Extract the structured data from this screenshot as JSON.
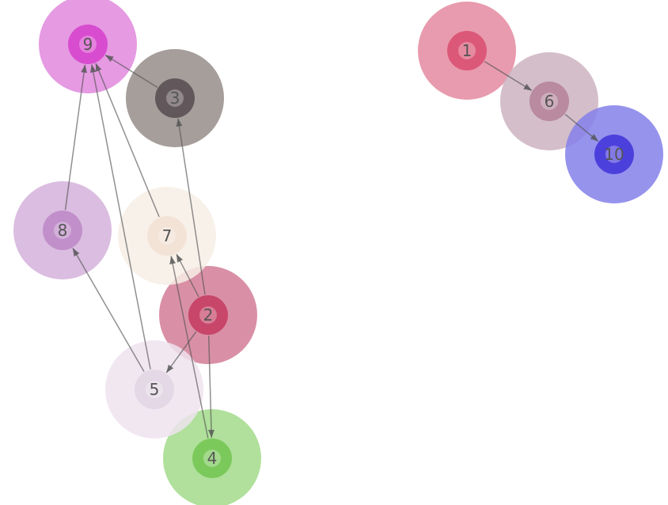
{
  "graph": {
    "directed": true,
    "nodes": [
      {
        "id": "1",
        "label": "1",
        "outer": "#e48aa0",
        "inner": "#dc5878"
      },
      {
        "id": "2",
        "label": "2",
        "outer": "#d27c96",
        "inner": "#c74669"
      },
      {
        "id": "3",
        "label": "3",
        "outer": "#958d8a",
        "inner": "#62575a"
      },
      {
        "id": "4",
        "label": "4",
        "outer": "#a2da8a",
        "inner": "#7cc95b"
      },
      {
        "id": "5",
        "label": "5",
        "outer": "#efe3ee",
        "inner": "#e4d8e6"
      },
      {
        "id": "6",
        "label": "6",
        "outer": "#cdb3bf",
        "inner": "#b98aa0"
      },
      {
        "id": "7",
        "label": "7",
        "outer": "#f7eee6",
        "inner": "#f3e3d6"
      },
      {
        "id": "8",
        "label": "8",
        "outer": "#d4b2da",
        "inner": "#c18fca"
      },
      {
        "id": "9",
        "label": "9",
        "outer": "#e088dd",
        "inner": "#d84ccf"
      },
      {
        "id": "10",
        "label": "10",
        "outer": "#8480ea",
        "inner": "#4c40dc"
      }
    ],
    "edges": [
      {
        "from": "3",
        "to": "9"
      },
      {
        "from": "8",
        "to": "9"
      },
      {
        "from": "5",
        "to": "9"
      },
      {
        "from": "7",
        "to": "9"
      },
      {
        "from": "2",
        "to": "3"
      },
      {
        "from": "2",
        "to": "7"
      },
      {
        "from": "2",
        "to": "5"
      },
      {
        "from": "2",
        "to": "4"
      },
      {
        "from": "4",
        "to": "7"
      },
      {
        "from": "5",
        "to": "8"
      },
      {
        "from": "1",
        "to": "6"
      },
      {
        "from": "6",
        "to": "10"
      }
    ],
    "edge_color": "#555555"
  }
}
